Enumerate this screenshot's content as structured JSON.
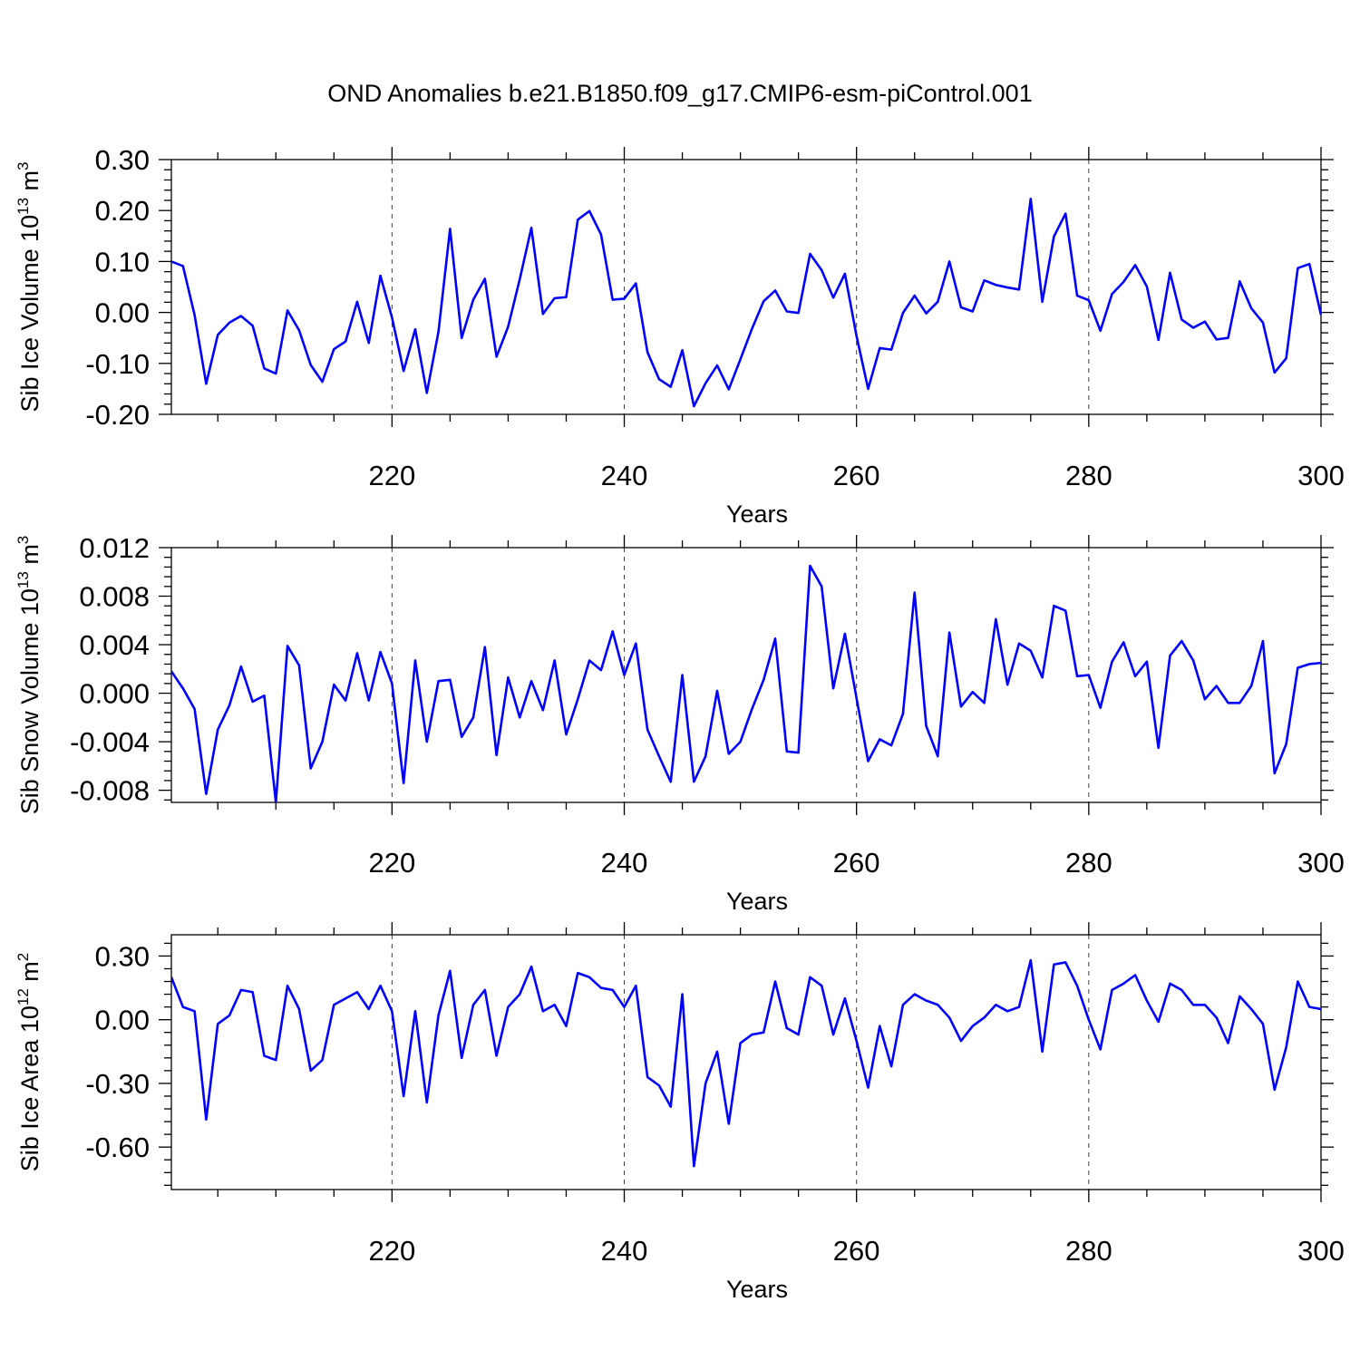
{
  "title": "OND Anomalies b.e21.B1850.f09_g17.CMIP6-esm-piControl.001",
  "line_color": "#0000ff",
  "chart_data": [
    {
      "type": "line",
      "ylabel": "Sib Ice Volume 10",
      "ylabel_exp": "13",
      "ylabel_unit": " m",
      "ylabel_unit_exp": "3",
      "xlabel": "Years",
      "xlim": [
        201,
        300
      ],
      "ylim": [
        -0.2,
        0.3
      ],
      "yticks": [
        -0.2,
        -0.1,
        0.0,
        0.1,
        0.2,
        0.3
      ],
      "ytick_labels": [
        "-0.20",
        "-0.10",
        "0.00",
        "0.10",
        "0.20",
        "0.30"
      ],
      "xticks": [
        220,
        240,
        260,
        280,
        300
      ],
      "xtick_labels": [
        "220",
        "240",
        "260",
        "280",
        "300"
      ],
      "grid_x": true,
      "x_start": 201,
      "series": [
        {
          "values": [
            0.1,
            0.091,
            -0.005,
            -0.14,
            -0.044,
            -0.02,
            -0.007,
            -0.026,
            -0.11,
            -0.12,
            0.004,
            -0.035,
            -0.103,
            -0.136,
            -0.072,
            -0.057,
            0.021,
            -0.06,
            0.072,
            -0.01,
            -0.115,
            -0.033,
            -0.158,
            -0.038,
            0.164,
            -0.05,
            0.025,
            0.066,
            -0.087,
            -0.028,
            0.065,
            0.166,
            -0.003,
            0.028,
            0.03,
            0.182,
            0.199,
            0.153,
            0.025,
            0.027,
            0.057,
            -0.078,
            -0.131,
            -0.146,
            -0.074,
            -0.184,
            -0.139,
            -0.104,
            -0.151,
            -0.092,
            -0.032,
            0.022,
            0.043,
            0.002,
            -0.001,
            0.115,
            0.083,
            0.029,
            0.076,
            -0.046,
            -0.15,
            -0.07,
            -0.073,
            -0.001,
            0.033,
            -0.002,
            0.021,
            0.1,
            0.01,
            0.002,
            0.063,
            0.054,
            0.049,
            0.045,
            0.223,
            0.021,
            0.149,
            0.194,
            0.033,
            0.024,
            -0.036,
            0.036,
            0.06,
            0.093,
            0.051,
            -0.054,
            0.078,
            -0.014,
            -0.03,
            -0.018,
            -0.053,
            -0.05,
            0.061,
            0.008,
            -0.02,
            -0.118,
            -0.09,
            0.087,
            0.095,
            -0.005
          ]
        }
      ]
    },
    {
      "type": "line",
      "ylabel": "Sib Snow Volume 10",
      "ylabel_exp": "13",
      "ylabel_unit": " m",
      "ylabel_unit_exp": "3",
      "xlabel": "Years",
      "xlim": [
        201,
        300
      ],
      "ylim": [
        -0.009,
        0.012
      ],
      "yticks": [
        -0.008,
        -0.004,
        0.0,
        0.004,
        0.008,
        0.012
      ],
      "ytick_labels": [
        "-0.008",
        "-0.004",
        "0.000",
        "0.004",
        "0.008",
        "0.012"
      ],
      "xticks": [
        220,
        240,
        260,
        280,
        300
      ],
      "xtick_labels": [
        "220",
        "240",
        "260",
        "280",
        "300"
      ],
      "grid_x": true,
      "x_start": 201,
      "series": [
        {
          "values": [
            0.0018,
            0.0004,
            -0.0013,
            -0.0083,
            -0.003,
            -0.001,
            0.0022,
            -0.0007,
            -0.0002,
            -0.009,
            0.0039,
            0.0023,
            -0.0062,
            -0.004,
            0.0007,
            -0.0006,
            0.0033,
            -0.0006,
            0.0034,
            0.0008,
            -0.0074,
            0.0027,
            -0.004,
            0.001,
            0.0011,
            -0.0036,
            -0.002,
            0.0038,
            -0.0051,
            0.0013,
            -0.002,
            0.001,
            -0.0014,
            0.0027,
            -0.0034,
            -0.0005,
            0.0027,
            0.0019,
            0.0051,
            0.0015,
            0.0041,
            -0.003,
            -0.0052,
            -0.0073,
            0.0015,
            -0.0073,
            -0.0052,
            0.0002,
            -0.005,
            -0.004,
            -0.0013,
            0.0011,
            0.0045,
            -0.0048,
            -0.0049,
            0.0105,
            0.0088,
            0.0004,
            0.0049,
            -0.0004,
            -0.0056,
            -0.0038,
            -0.0043,
            -0.0017,
            0.0083,
            -0.0027,
            -0.0052,
            0.005,
            -0.0011,
            0.0001,
            -0.0008,
            0.0061,
            0.0007,
            0.0041,
            0.0035,
            0.0013,
            0.0072,
            0.0068,
            0.0014,
            0.0015,
            -0.0012,
            0.0026,
            0.0042,
            0.0014,
            0.0026,
            -0.0045,
            0.0031,
            0.0043,
            0.0027,
            -0.0005,
            0.0006,
            -0.0008,
            -0.0008,
            0.0006,
            0.0043,
            -0.0066,
            -0.0042,
            0.0021,
            0.0024,
            0.0025
          ]
        }
      ]
    },
    {
      "type": "line",
      "ylabel": "Sib Ice Area 10",
      "ylabel_exp": "12",
      "ylabel_unit": " m",
      "ylabel_unit_exp": "2",
      "xlabel": "Years",
      "xlim": [
        201,
        300
      ],
      "ylim": [
        -0.8,
        0.4
      ],
      "yticks": [
        -0.6,
        -0.3,
        0.0,
        0.3
      ],
      "ytick_labels": [
        "-0.60",
        "-0.30",
        "0.00",
        "0.30"
      ],
      "xticks": [
        220,
        240,
        260,
        280,
        300
      ],
      "xtick_labels": [
        "220",
        "240",
        "260",
        "280",
        "300"
      ],
      "grid_x": true,
      "x_start": 201,
      "series": [
        {
          "values": [
            0.2,
            0.06,
            0.04,
            -0.47,
            -0.02,
            0.02,
            0.14,
            0.13,
            -0.17,
            -0.19,
            0.16,
            0.05,
            -0.24,
            -0.19,
            0.07,
            0.1,
            0.13,
            0.05,
            0.16,
            0.04,
            -0.36,
            0.04,
            -0.39,
            0.02,
            0.23,
            -0.18,
            0.07,
            0.14,
            -0.17,
            0.06,
            0.12,
            0.25,
            0.04,
            0.07,
            -0.03,
            0.22,
            0.2,
            0.15,
            0.14,
            0.06,
            0.16,
            -0.27,
            -0.31,
            -0.41,
            0.12,
            -0.69,
            -0.3,
            -0.15,
            -0.49,
            -0.11,
            -0.07,
            -0.06,
            0.18,
            -0.04,
            -0.07,
            0.2,
            0.16,
            -0.07,
            0.1,
            -0.1,
            -0.32,
            -0.03,
            -0.22,
            0.07,
            0.12,
            0.09,
            0.07,
            0.01,
            -0.1,
            -0.03,
            0.01,
            0.07,
            0.04,
            0.06,
            0.28,
            -0.15,
            0.26,
            0.27,
            0.16,
            0.0,
            -0.14,
            0.14,
            0.17,
            0.21,
            0.09,
            -0.01,
            0.17,
            0.14,
            0.07,
            0.07,
            0.01,
            -0.11,
            0.11,
            0.05,
            -0.02,
            -0.33,
            -0.13,
            0.18,
            0.06,
            0.05
          ]
        }
      ]
    }
  ]
}
